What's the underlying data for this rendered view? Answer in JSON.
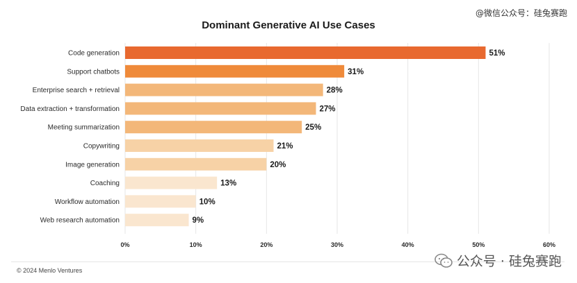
{
  "watermark": "@微信公众号：硅兔赛跑",
  "copyright": "© 2024 Menlo Ventures",
  "wechat_badge": "公众号 · 硅兔赛跑",
  "chart_data": {
    "type": "bar",
    "orientation": "horizontal",
    "title": "Dominant Generative AI Use Cases",
    "categories": [
      "Code generation",
      "Support chatbots",
      "Enterprise search + retrieval",
      "Data extraction + transformation",
      "Meeting summarization",
      "Copywriting",
      "Image generation",
      "Coaching",
      "Workflow automation",
      "Web research automation"
    ],
    "values": [
      51,
      31,
      28,
      27,
      25,
      21,
      20,
      13,
      10,
      9
    ],
    "value_labels": [
      "51%",
      "31%",
      "28%",
      "27%",
      "25%",
      "21%",
      "20%",
      "13%",
      "10%",
      "9%"
    ],
    "colors": [
      "#e8692f",
      "#ef8a3a",
      "#f3b779",
      "#f3b779",
      "#f3b779",
      "#f7d2a6",
      "#f7d2a6",
      "#fae6cf",
      "#fae6cf",
      "#fae6cf"
    ],
    "x_ticks": [
      "0%",
      "10%",
      "20%",
      "30%",
      "40%",
      "50%",
      "60%"
    ],
    "xlim": [
      0,
      60
    ],
    "grid": true
  }
}
